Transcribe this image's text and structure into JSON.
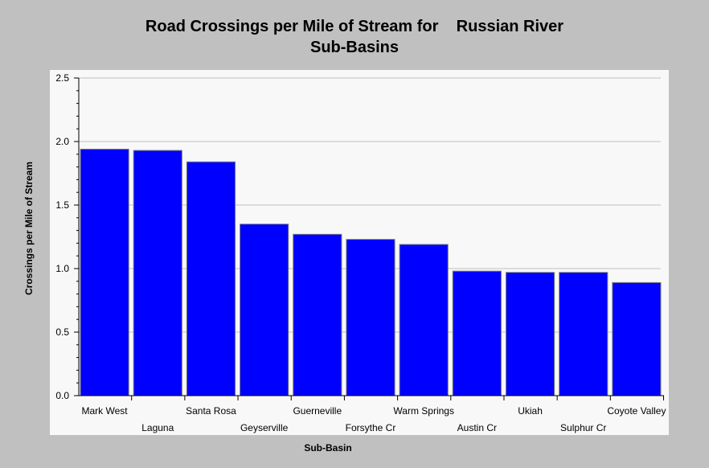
{
  "chart_data": {
    "type": "bar",
    "title_line1": "Road Crossings per Mile of Stream for    Russian River",
    "title_line2": "Sub-Basins",
    "xlabel": "Sub-Basin",
    "ylabel": "Crossings per Mile of Stream",
    "ylim": [
      0,
      2.5
    ],
    "yticks": [
      "0.0",
      "0.5",
      "1.0",
      "1.5",
      "2.0",
      "2.5"
    ],
    "grid": true,
    "categories": [
      "Mark West",
      "Laguna",
      "Santa Rosa",
      "Geyserville",
      "Guerneville",
      "Forsythe Cr",
      "Warm Springs",
      "Austin Cr",
      "Ukiah",
      "Sulphur Cr",
      "Coyote Valley"
    ],
    "values": [
      1.94,
      1.93,
      1.84,
      1.35,
      1.27,
      1.23,
      1.19,
      0.98,
      0.97,
      0.97,
      0.89
    ],
    "colors": {
      "bar": "#0000ff",
      "plot_bg": "#f8f8f8",
      "page_bg": "#c0c0c0",
      "grid": "#c0c0c0"
    }
  }
}
